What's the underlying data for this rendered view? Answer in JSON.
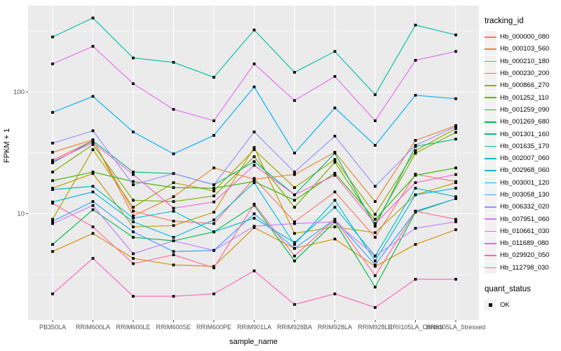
{
  "figure": {
    "background": "#FFFFFF",
    "panel_background": "#EBEBEB",
    "grid_color": "#FFFFFF",
    "axis_text_color": "#4D4D4D",
    "tick_color": "#333333"
  },
  "legend": {
    "title": "tracking_id",
    "quant_title": "quant_status",
    "quant_items": [
      {
        "label": "OK",
        "shape": "black-square"
      }
    ]
  },
  "chart_data": {
    "type": "line",
    "title": "",
    "xlabel": "sample_name",
    "ylabel": "FPKM + 1",
    "y_scale": "log10",
    "y_ticks": [
      100,
      10
    ],
    "y_tick_labels": [
      "100",
      "10"
    ],
    "y_minor_breaks": [
      316.2,
      31.62,
      3.162
    ],
    "ylim": [
      1.3,
      500
    ],
    "grid": true,
    "legend_position": "right",
    "point_shape": "square",
    "categories": [
      "PB350LA",
      "RRIM600LA",
      "RRIM600LE",
      "RRIM600SE",
      "RRIM600PE",
      "RRIM901LA",
      "RRIM928BA",
      "RRIM928LA",
      "RRIM928LE",
      "RRII105LA_Control",
      "RRII105LA_Stressed"
    ],
    "series": [
      {
        "name": "Hb_000000_080",
        "color": "#F8766D",
        "quant_status": "OK",
        "values": [
          27.5,
          40,
          10.5,
          8.7,
          8.3,
          19.5,
          8.6,
          15.1,
          6.4,
          21.1,
          18.4
        ]
      },
      {
        "name": "Hb_000103_560",
        "color": "#EA8331",
        "quant_status": "OK",
        "values": [
          32,
          40.5,
          9.6,
          13.8,
          23.8,
          19.2,
          21,
          32,
          12.6,
          40,
          53
        ]
      },
      {
        "name": "Hb_000210_180",
        "color": "#D89000",
        "quant_status": "OK",
        "values": [
          4.9,
          6.9,
          4.3,
          3.8,
          3.7,
          7.7,
          5.2,
          6.2,
          3.7,
          5.6,
          7.4
        ]
      },
      {
        "name": "Hb_000230_200",
        "color": "#C09B00",
        "quant_status": "OK",
        "values": [
          16.2,
          21.4,
          7.8,
          8.0,
          10.3,
          35,
          6.9,
          7.8,
          7.0,
          14.3,
          18.0
        ]
      },
      {
        "name": "Hb_000866_270",
        "color": "#A3A500",
        "quant_status": "OK",
        "values": [
          9.0,
          33.6,
          11.3,
          18.0,
          15.4,
          33.6,
          16.4,
          27.9,
          9.9,
          33,
          50
        ]
      },
      {
        "name": "Hb_001252_110",
        "color": "#7CAE00",
        "quant_status": "OK",
        "values": [
          22,
          37,
          12.9,
          12.6,
          14.0,
          29.4,
          11.3,
          26.5,
          8.3,
          31.4,
          46.6
        ]
      },
      {
        "name": "Hb_001259_090",
        "color": "#39B600",
        "quant_status": "OK",
        "values": [
          18.7,
          22,
          18.4,
          16.4,
          16.2,
          18.4,
          12.9,
          21.5,
          9.0,
          20.7,
          23.8
        ]
      },
      {
        "name": "Hb_001269_680",
        "color": "#00BB4E",
        "quant_status": "OK",
        "values": [
          5.6,
          10.8,
          6.4,
          6.0,
          7.1,
          11.7,
          4.1,
          8.6,
          2.5,
          10.3,
          13.3
        ]
      },
      {
        "name": "Hb_001301_160",
        "color": "#00BF7D",
        "quant_status": "OK",
        "values": [
          26.2,
          39.7,
          22,
          21.4,
          17.3,
          26.8,
          14.3,
          31.4,
          7.9,
          35.7,
          41
        ]
      },
      {
        "name": "Hb_001635_170",
        "color": "#00C1A3",
        "quant_status": "OK",
        "values": [
          283,
          405,
          190,
          175,
          132,
          323,
          145,
          215,
          95,
          354,
          294
        ]
      },
      {
        "name": "Hb_002007_060",
        "color": "#00BFC4",
        "quant_status": "OK",
        "values": [
          15.8,
          16.8,
          9.2,
          10.5,
          7.1,
          9.2,
          5.8,
          11.3,
          4.5,
          16.2,
          13.8
        ]
      },
      {
        "name": "Hb_002968_060",
        "color": "#00BAE0",
        "quant_status": "OK",
        "values": [
          12.5,
          15.1,
          8.6,
          6.4,
          8.9,
          18.0,
          5.6,
          12.9,
          4.1,
          14.3,
          16.2
        ]
      },
      {
        "name": "Hb_003001_120",
        "color": "#00B0F6",
        "quant_status": "OK",
        "values": [
          68,
          92,
          47,
          31,
          44,
          110,
          31.5,
          74,
          36.4,
          94,
          88
        ]
      },
      {
        "name": "Hb_003058_130",
        "color": "#35A2FF",
        "quant_status": "OK",
        "values": [
          8.7,
          12.6,
          7.1,
          4.9,
          5.0,
          10.0,
          5.2,
          9.0,
          3.8,
          10.5,
          13.3
        ]
      },
      {
        "name": "Hb_006332_020",
        "color": "#9590FF",
        "quant_status": "OK",
        "values": [
          38,
          48,
          17.3,
          21.4,
          17.3,
          47,
          22,
          43.4,
          16.8,
          36.4,
          52
        ]
      },
      {
        "name": "Hb_007951_060",
        "color": "#C77CFF",
        "quant_status": "OK",
        "values": [
          8.3,
          11.7,
          4.7,
          6.0,
          5.0,
          7.9,
          8.3,
          8.6,
          4.5,
          7.6,
          8.6
        ]
      },
      {
        "name": "Hb_010661_030",
        "color": "#E76BF3",
        "quant_status": "OK",
        "values": [
          170,
          237,
          117,
          72,
          58,
          170,
          85,
          134,
          58,
          182,
          215
        ]
      },
      {
        "name": "Hb_011689_080",
        "color": "#FA62DB",
        "quant_status": "OK",
        "values": [
          26.8,
          38.3,
          21,
          11.1,
          12.5,
          25,
          14.3,
          20.7,
          8.3,
          18.0,
          21.0
        ]
      },
      {
        "name": "Hb_029920_050",
        "color": "#FF62BC",
        "quant_status": "OK",
        "values": [
          2.2,
          4.3,
          2.1,
          2.1,
          2.2,
          3.4,
          1.8,
          2.2,
          1.7,
          2.9,
          2.9
        ]
      },
      {
        "name": "Hb_112798_030",
        "color": "#FF6A98",
        "quant_status": "OK",
        "values": [
          12.2,
          7.8,
          3.9,
          4.6,
          3.6,
          12.0,
          4.5,
          9.0,
          3.1,
          10.5,
          9.0
        ]
      }
    ]
  }
}
